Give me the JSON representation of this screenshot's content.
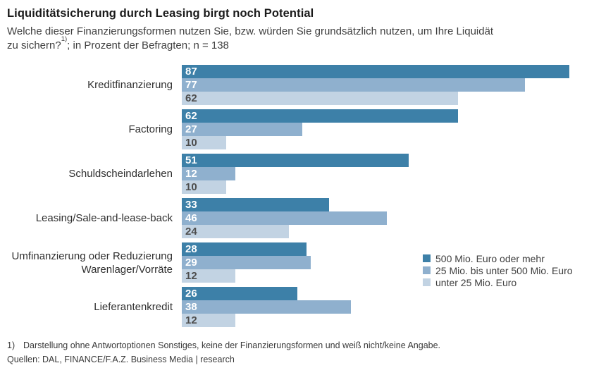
{
  "header": {
    "title": "Liquiditätsicherung durch Leasing birgt noch Potential",
    "subtitle_line1": "Welche dieser Finanzierungsformen nutzen Sie, bzw. würden Sie grundsätzlich nutzen, um Ihre Liquidät",
    "subtitle_line2_pre": "zu sichern?",
    "subtitle_sup": "1)",
    "subtitle_line2_post": "; in Prozent der Befragten; n = 138"
  },
  "chart_data": {
    "type": "bar",
    "orientation": "horizontal",
    "unit": "Prozent der Befragten",
    "n": 138,
    "xlim": [
      0,
      87
    ],
    "grid": false,
    "legend_position": "right-middle",
    "categories": [
      "Kreditfinanzierung",
      "Factoring",
      "Schuldscheindarlehen",
      "Leasing/Sale-and-lease-back",
      "Umfinanzierung oder Reduzierung Warenlager/Vorräte",
      "Lieferantenkredit"
    ],
    "series": [
      {
        "name": "500 Mio. Euro oder mehr",
        "color": "#3d80a8",
        "value_color": "#ffffff",
        "values": [
          87,
          62,
          51,
          33,
          28,
          26
        ]
      },
      {
        "name": "25 Mio. bis unter 500 Mio. Euro",
        "color": "#8fb0ce",
        "value_color": "#ffffff",
        "values": [
          77,
          27,
          12,
          46,
          29,
          38
        ]
      },
      {
        "name": "unter 25 Mio. Euro",
        "color": "#c2d3e3",
        "value_color": "#4d4d4d",
        "values": [
          62,
          10,
          10,
          24,
          12,
          12
        ]
      }
    ]
  },
  "footnote": {
    "marker": "1)",
    "text": "Darstellung ohne Antwortoptionen Sonstiges, keine der Finanzierungsformen und weiß nicht/keine Angabe."
  },
  "sources": "Quellen: DAL, FINANCE/F.A.Z. Business Media | research"
}
